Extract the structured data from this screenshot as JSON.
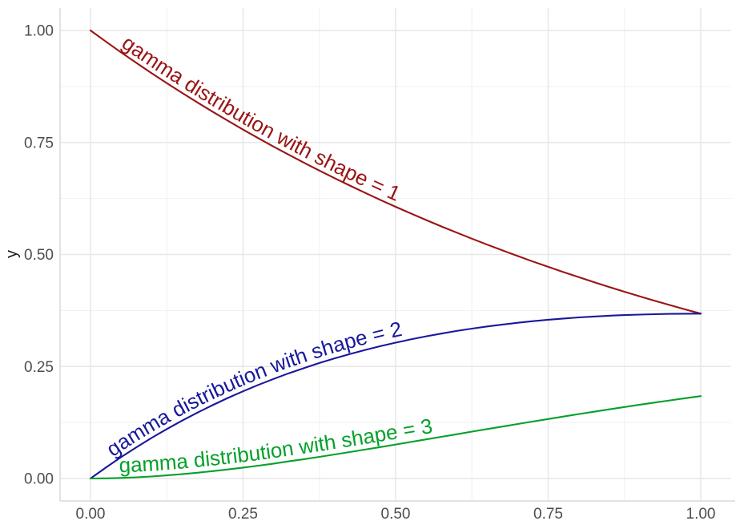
{
  "figure": {
    "background_color": "#FFFFFF"
  },
  "axes": {
    "x_tick_labels": [
      "0.00",
      "0.25",
      "0.50",
      "0.75",
      "1.00"
    ],
    "y_tick_labels": [
      "0.00",
      "0.25",
      "0.50",
      "0.75",
      "1.00"
    ],
    "tick_label_color": "#4D4D4D",
    "axis_title_color": "#1A1A1A"
  },
  "chart_data": {
    "type": "line",
    "title": "",
    "xlabel": "",
    "ylabel": "y",
    "xlim": [
      0,
      1
    ],
    "ylim": [
      0,
      1
    ],
    "x_ticks": [
      0,
      0.25,
      0.5,
      0.75,
      1
    ],
    "y_ticks": [
      0,
      0.25,
      0.5,
      0.75,
      1
    ],
    "x_minor_ticks": [
      0.125,
      0.375,
      0.625,
      0.875
    ],
    "y_minor_ticks": [
      0.125,
      0.375,
      0.625,
      0.875
    ],
    "grid": "major and minor gridlines, light gray on white; axis lines left and bottom",
    "legend_position": "none (labels drawn along curves)",
    "style": {
      "grid_major_color": "#E7E7E7",
      "grid_minor_color": "#F1F1F1",
      "axis_line_color": "#D9D9D9"
    },
    "x": [
      0,
      0.025,
      0.05,
      0.075,
      0.1,
      0.125,
      0.15,
      0.175,
      0.2,
      0.225,
      0.25,
      0.275,
      0.3,
      0.325,
      0.35,
      0.375,
      0.4,
      0.425,
      0.45,
      0.475,
      0.5,
      0.525,
      0.55,
      0.575,
      0.6,
      0.625,
      0.65,
      0.675,
      0.7,
      0.725,
      0.75,
      0.775,
      0.8,
      0.825,
      0.85,
      0.875,
      0.9,
      0.925,
      0.95,
      0.975,
      1.0
    ],
    "series": [
      {
        "name": "shape = 1",
        "label": "gamma distribution with shape = 1",
        "color": "#9A1414",
        "label_offset": 46,
        "y": [
          1.0,
          0.9753,
          0.9512,
          0.9277,
          0.9048,
          0.8825,
          0.8607,
          0.8395,
          0.8187,
          0.7985,
          0.7788,
          0.7596,
          0.7408,
          0.7225,
          0.7047,
          0.6873,
          0.6703,
          0.6538,
          0.6376,
          0.6219,
          0.6065,
          0.5916,
          0.5769,
          0.5627,
          0.5488,
          0.5353,
          0.522,
          0.5092,
          0.4966,
          0.4843,
          0.4724,
          0.4607,
          0.4493,
          0.4382,
          0.4274,
          0.4169,
          0.4066,
          0.3965,
          0.3867,
          0.3772,
          0.3679
        ]
      },
      {
        "name": "shape = 2",
        "label": "gamma distribution with shape = 2",
        "color": "#18189B",
        "label_offset": 34,
        "y": [
          0.0,
          0.0244,
          0.0476,
          0.0696,
          0.0905,
          0.1103,
          0.1291,
          0.1469,
          0.1637,
          0.1797,
          0.1947,
          0.2089,
          0.2222,
          0.2348,
          0.2466,
          0.2577,
          0.2681,
          0.2779,
          0.2869,
          0.2954,
          0.3033,
          0.3106,
          0.3173,
          0.3235,
          0.3293,
          0.3346,
          0.3393,
          0.3437,
          0.3476,
          0.3511,
          0.3543,
          0.357,
          0.3595,
          0.3615,
          0.3633,
          0.3648,
          0.3659,
          0.3668,
          0.3674,
          0.3678,
          0.3679
        ]
      },
      {
        "name": "shape = 3",
        "label": "gamma distribution with shape = 3",
        "color": "#05A02A",
        "label_offset": 36,
        "y": [
          0.0,
          0.0003,
          0.0012,
          0.0026,
          0.0045,
          0.0069,
          0.0097,
          0.0129,
          0.0164,
          0.0202,
          0.0243,
          0.0287,
          0.0333,
          0.0382,
          0.0432,
          0.0483,
          0.0536,
          0.0591,
          0.0646,
          0.0702,
          0.0758,
          0.0815,
          0.0873,
          0.093,
          0.0988,
          0.1046,
          0.1103,
          0.116,
          0.1217,
          0.1272,
          0.1328,
          0.1382,
          0.1438,
          0.1491,
          0.1544,
          0.1596,
          0.1647,
          0.1696,
          0.1745,
          0.1793,
          0.1839
        ]
      }
    ]
  }
}
